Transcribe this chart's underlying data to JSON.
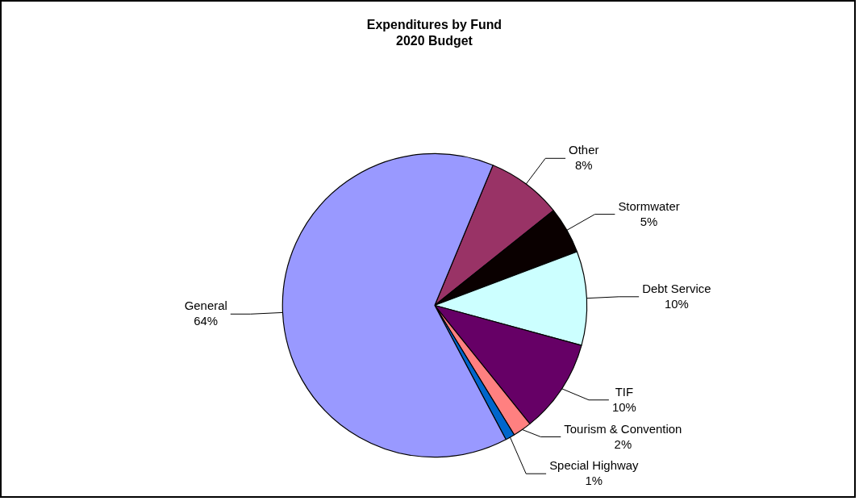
{
  "chart_data": {
    "type": "pie",
    "title": "Expenditures by Fund",
    "subtitle": "2020 Budget",
    "categories": [
      "Other",
      "Stormwater",
      "Debt Service",
      "TIF",
      "Tourism & Convention",
      "Special Highway",
      "General"
    ],
    "values": [
      8,
      5,
      10,
      10,
      2,
      1,
      64
    ],
    "colors": [
      "#993366",
      "#0a0000",
      "#ccffff",
      "#660066",
      "#ff8080",
      "#0066cc",
      "#9999ff"
    ],
    "value_labels": [
      "8%",
      "5%",
      "10%",
      "10%",
      "2%",
      "1%",
      "64%"
    ],
    "legend": false
  }
}
